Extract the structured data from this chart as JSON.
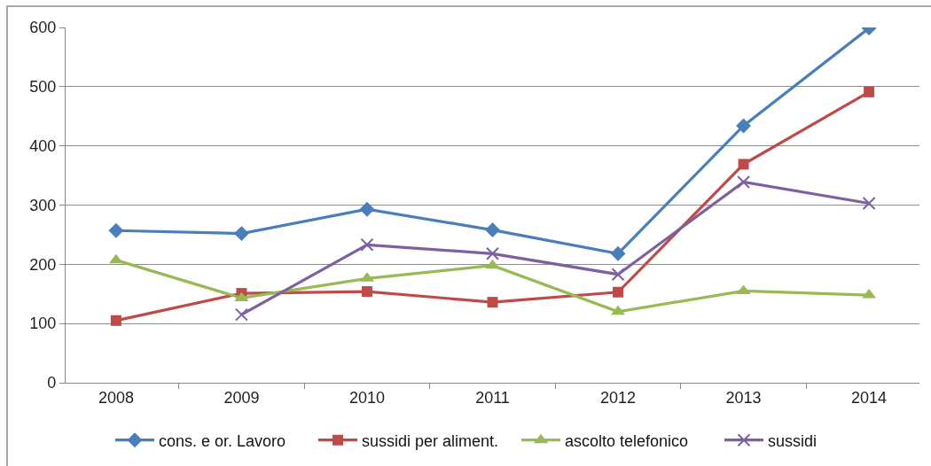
{
  "chart_data": {
    "type": "line",
    "categories": [
      "2008",
      "2009",
      "2010",
      "2011",
      "2012",
      "2013",
      "2014"
    ],
    "series": [
      {
        "name": "cons. e or. Lavoro",
        "color": "#4a7ebb",
        "marker": "diamond",
        "values": [
          257,
          252,
          293,
          258,
          218,
          434,
          599
        ]
      },
      {
        "name": "sussidi per aliment.",
        "color": "#be4b48",
        "marker": "square",
        "values": [
          105,
          151,
          154,
          136,
          153,
          369,
          491
        ]
      },
      {
        "name": "ascolto telefonico",
        "color": "#98b954",
        "marker": "triangle",
        "values": [
          207,
          143,
          176,
          198,
          120,
          155,
          148
        ]
      },
      {
        "name": "sussidi",
        "color": "#7d60a0",
        "marker": "cross",
        "values": [
          null,
          115,
          233,
          218,
          183,
          339,
          303
        ]
      }
    ],
    "ylim": [
      0,
      600
    ],
    "yticks": [
      0,
      100,
      200,
      300,
      400,
      500,
      600
    ],
    "grid": "y",
    "legend": "bottom",
    "line_style": "solid"
  }
}
